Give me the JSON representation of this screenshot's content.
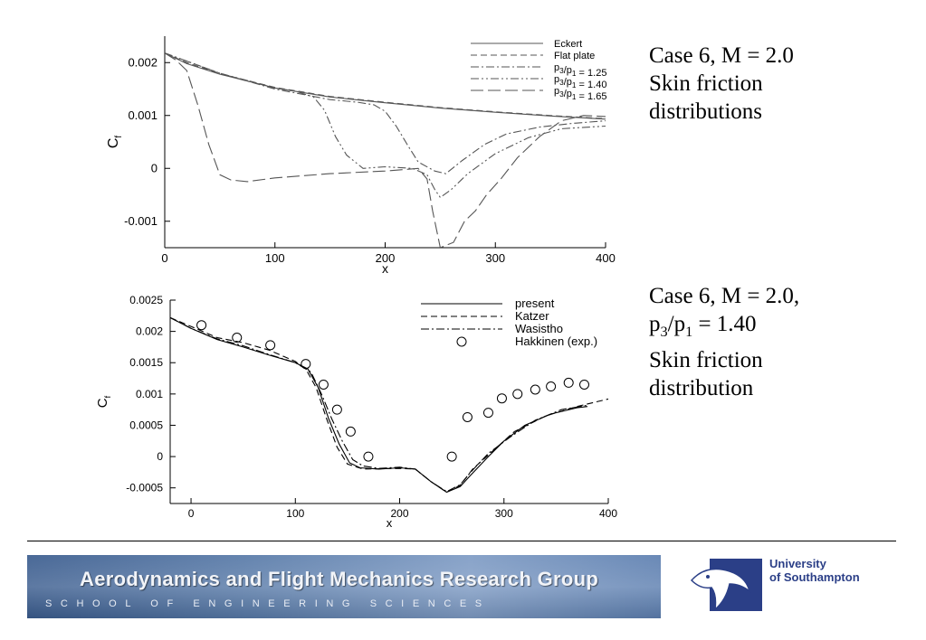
{
  "chart_data": [
    {
      "type": "line",
      "title": "",
      "xlabel": "x",
      "ylabel": "C_f",
      "xlim": [
        0,
        400
      ],
      "ylim": [
        -0.0015,
        0.0025
      ],
      "x_ticks": [
        0,
        100,
        200,
        300,
        400
      ],
      "y_ticks": [
        -0.001,
        0,
        0.001,
        0.002
      ],
      "x_tick_labels": [
        "0",
        "100",
        "200",
        "300",
        "400"
      ],
      "y_tick_labels": [
        "-0.001",
        "0",
        "0.001",
        "0.002"
      ],
      "legend_position": "top-right",
      "grid": false,
      "series": [
        {
          "name": "Eckert",
          "style": "solid",
          "points": [
            [
              0,
              0.00218
            ],
            [
              20,
              0.00198
            ],
            [
              50,
              0.00178
            ],
            [
              100,
              0.00152
            ],
            [
              150,
              0.00135
            ],
            [
              200,
              0.00124
            ],
            [
              250,
              0.00114
            ],
            [
              300,
              0.00106
            ],
            [
              350,
              0.00099
            ],
            [
              400,
              0.00093
            ]
          ]
        },
        {
          "name": "Flat plate",
          "style": "dashed",
          "points": [
            [
              0,
              0.00218
            ],
            [
              20,
              0.002
            ],
            [
              50,
              0.00179
            ],
            [
              100,
              0.00153
            ],
            [
              150,
              0.00136
            ],
            [
              200,
              0.00125
            ],
            [
              250,
              0.00115
            ],
            [
              300,
              0.00107
            ],
            [
              350,
              0.001
            ],
            [
              400,
              0.00094
            ]
          ]
        },
        {
          "name": "p3/p1 = 1.25",
          "style": "dashdot",
          "points": [
            [
              0,
              0.00218
            ],
            [
              50,
              0.0018
            ],
            [
              100,
              0.0015
            ],
            [
              150,
              0.0013
            ],
            [
              175,
              0.00125
            ],
            [
              190,
              0.0012
            ],
            [
              200,
              0.00108
            ],
            [
              210,
              0.0008
            ],
            [
              220,
              0.00045
            ],
            [
              230,
              0.00012
            ],
            [
              245,
              -5e-05
            ],
            [
              255,
              -0.0001
            ],
            [
              270,
              0.00015
            ],
            [
              290,
              0.00045
            ],
            [
              310,
              0.00065
            ],
            [
              340,
              0.00078
            ],
            [
              370,
              0.00085
            ],
            [
              400,
              0.0009
            ]
          ]
        },
        {
          "name": "p3/p1 = 1.40",
          "style": "dashdotdot",
          "points": [
            [
              0,
              0.00218
            ],
            [
              50,
              0.0018
            ],
            [
              100,
              0.00152
            ],
            [
              120,
              0.00145
            ],
            [
              135,
              0.00135
            ],
            [
              145,
              0.0011
            ],
            [
              155,
              0.0006
            ],
            [
              165,
              0.00025
            ],
            [
              180,
              0.0
            ],
            [
              200,
              3e-05
            ],
            [
              225,
              0.0
            ],
            [
              238,
              -0.00012
            ],
            [
              245,
              -0.0004
            ],
            [
              250,
              -0.00055
            ],
            [
              260,
              -0.0004
            ],
            [
              275,
              -0.0001
            ],
            [
              300,
              0.00028
            ],
            [
              330,
              0.00058
            ],
            [
              360,
              0.00075
            ],
            [
              400,
              0.0008
            ]
          ]
        },
        {
          "name": "p3/p1 = 1.65",
          "style": "longdash",
          "points": [
            [
              0,
              0.00218
            ],
            [
              10,
              0.00205
            ],
            [
              20,
              0.00185
            ],
            [
              30,
              0.0012
            ],
            [
              40,
              0.00045
            ],
            [
              50,
              -0.00012
            ],
            [
              60,
              -0.00022
            ],
            [
              75,
              -0.00025
            ],
            [
              100,
              -0.00018
            ],
            [
              150,
              -0.0001
            ],
            [
              200,
              -5e-05
            ],
            [
              230,
              0.0
            ],
            [
              238,
              -0.0002
            ],
            [
              243,
              -0.0008
            ],
            [
              250,
              -0.0015
            ],
            [
              262,
              -0.0014
            ],
            [
              272,
              -0.001
            ],
            [
              282,
              -0.0008
            ],
            [
              292,
              -0.0005
            ],
            [
              305,
              -0.0002
            ],
            [
              320,
              0.0002
            ],
            [
              340,
              0.0006
            ],
            [
              360,
              0.0009
            ],
            [
              380,
              0.001
            ],
            [
              400,
              0.00098
            ]
          ]
        }
      ]
    },
    {
      "type": "line",
      "title": "",
      "xlabel": "x",
      "ylabel": "C_f",
      "xlim": [
        -20,
        400
      ],
      "ylim": [
        -0.00075,
        0.0025
      ],
      "x_ticks": [
        0,
        100,
        200,
        300,
        400
      ],
      "y_ticks": [
        -0.0005,
        0,
        0.0005,
        0.001,
        0.0015,
        0.002,
        0.0025
      ],
      "x_tick_labels": [
        "0",
        "100",
        "200",
        "300",
        "400"
      ],
      "y_tick_labels": [
        "-0.0005",
        "0",
        "0.0005",
        "0.001",
        "0.0015",
        "0.002",
        "0.0025"
      ],
      "legend_position": "top-right",
      "grid": false,
      "series": [
        {
          "name": "present",
          "style": "solid",
          "points": [
            [
              -20,
              0.00222
            ],
            [
              0,
              0.00205
            ],
            [
              25,
              0.00187
            ],
            [
              50,
              0.00175
            ],
            [
              75,
              0.00162
            ],
            [
              100,
              0.0015
            ],
            [
              112,
              0.0014
            ],
            [
              122,
              0.0011
            ],
            [
              132,
              0.0006
            ],
            [
              142,
              0.0002
            ],
            [
              152,
              -0.0001
            ],
            [
              162,
              -0.00018
            ],
            [
              180,
              -0.0002
            ],
            [
              200,
              -0.00018
            ],
            [
              215,
              -0.0002
            ],
            [
              230,
              -0.0004
            ],
            [
              245,
              -0.00057
            ],
            [
              258,
              -0.00048
            ],
            [
              268,
              -0.0003
            ],
            [
              285,
              0.0
            ],
            [
              300,
              0.00025
            ],
            [
              320,
              0.0005
            ],
            [
              345,
              0.00068
            ],
            [
              370,
              0.00078
            ],
            [
              380,
              0.0008
            ]
          ]
        },
        {
          "name": "Katzer",
          "style": "dashed",
          "points": [
            [
              -20,
              0.00222
            ],
            [
              0,
              0.00208
            ],
            [
              25,
              0.0019
            ],
            [
              50,
              0.00182
            ],
            [
              75,
              0.0017
            ],
            [
              100,
              0.00152
            ],
            [
              110,
              0.0014
            ],
            [
              120,
              0.0011
            ],
            [
              130,
              0.0006
            ],
            [
              140,
              0.00015
            ],
            [
              150,
              -0.00012
            ],
            [
              165,
              -0.0002
            ],
            [
              200,
              -0.00019
            ],
            [
              215,
              -0.0002
            ],
            [
              230,
              -0.0004
            ],
            [
              245,
              -0.00057
            ],
            [
              258,
              -0.00046
            ],
            [
              270,
              -0.0002
            ],
            [
              290,
              0.0001
            ],
            [
              310,
              0.0004
            ],
            [
              340,
              0.00065
            ],
            [
              370,
              0.0008
            ],
            [
              400,
              0.00092
            ]
          ]
        },
        {
          "name": "Wasistho",
          "style": "dashdot",
          "points": [
            [
              -20,
              0.00222
            ],
            [
              0,
              0.00205
            ],
            [
              25,
              0.00188
            ],
            [
              50,
              0.00177
            ],
            [
              75,
              0.00163
            ],
            [
              100,
              0.0015
            ],
            [
              115,
              0.00135
            ],
            [
              125,
              0.001
            ],
            [
              135,
              0.0006
            ],
            [
              145,
              0.00025
            ],
            [
              155,
              -5e-05
            ],
            [
              165,
              -0.00015
            ],
            [
              180,
              -0.00019
            ],
            [
              200,
              -0.00017
            ],
            [
              215,
              -0.0002
            ],
            [
              230,
              -0.0004
            ],
            [
              245,
              -0.00056
            ],
            [
              258,
              -0.00045
            ],
            [
              268,
              -0.00025
            ],
            [
              285,
              5e-05
            ],
            [
              305,
              0.0003
            ],
            [
              330,
              0.00058
            ],
            [
              355,
              0.00075
            ],
            [
              380,
              0.00082
            ]
          ]
        },
        {
          "name": "Hakkinen (exp.)",
          "style": "circle",
          "points": [
            [
              10,
              0.0021
            ],
            [
              44,
              0.0019
            ],
            [
              76,
              0.00178
            ],
            [
              110,
              0.00148
            ],
            [
              127,
              0.00115
            ],
            [
              140,
              0.00075
            ],
            [
              153,
              0.0004
            ],
            [
              170,
              0.0
            ],
            [
              250,
              0.0
            ],
            [
              265,
              0.00063
            ],
            [
              285,
              0.0007
            ],
            [
              298,
              0.00093
            ],
            [
              313,
              0.001
            ],
            [
              330,
              0.00107
            ],
            [
              345,
              0.00112
            ],
            [
              362,
              0.00118
            ],
            [
              377,
              0.00115
            ]
          ]
        }
      ]
    }
  ],
  "captions": {
    "top": [
      "Case 6, M = 2.0",
      "Skin friction",
      "distributions"
    ],
    "bottom": [
      "Case 6, M = 2.0,",
      "p3/p1 = 1.40",
      "Skin friction",
      "distribution"
    ]
  },
  "footer": {
    "banner_title": "Aerodynamics and Flight Mechanics Research Group",
    "banner_subtitle": "SCHOOL OF ENGINEERING SCIENCES",
    "university_name": [
      "University",
      "of Southampton"
    ],
    "colors": {
      "banner": "#587aa8",
      "university_text": "#2b3f87",
      "logo_blue": "#2b3f87"
    }
  }
}
